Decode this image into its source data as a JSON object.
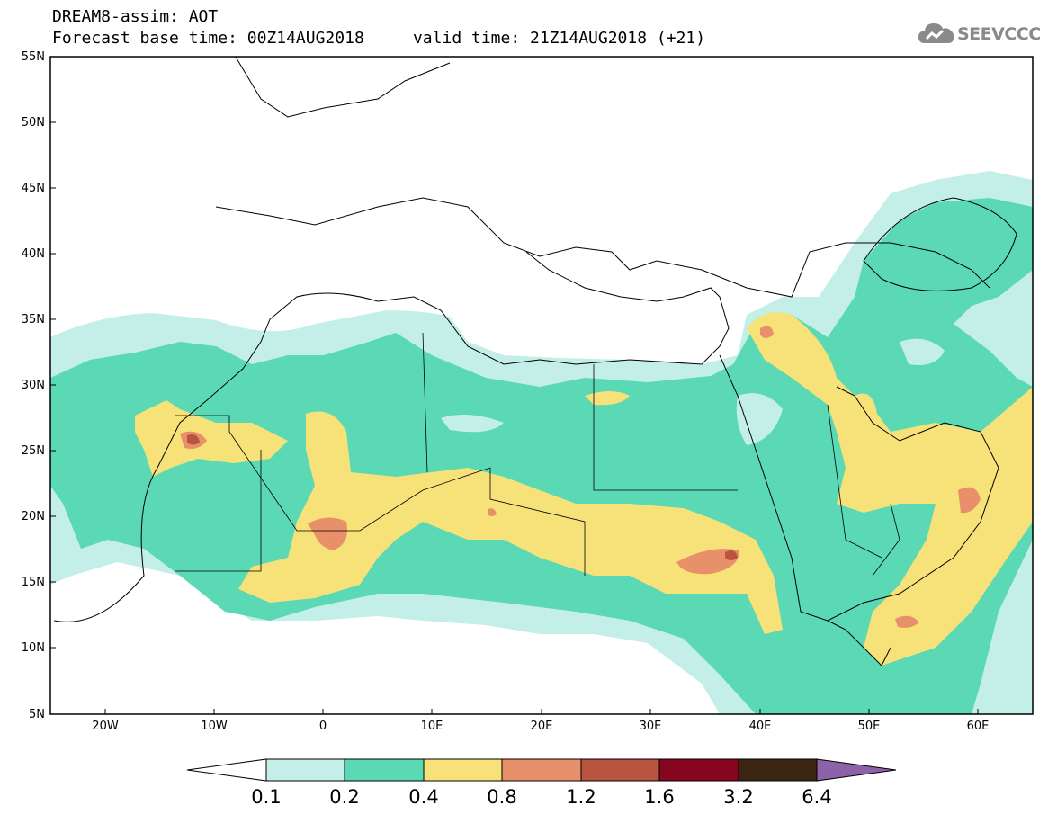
{
  "header": {
    "title_line1": "DREAM8-assim: AOT",
    "title_line2": "Forecast base time: 00Z14AUG2018     valid time: 21Z14AUG2018 (+21)"
  },
  "logo": {
    "text": "SEEVCCC"
  },
  "map": {
    "projection": "lat-lon",
    "lon_range": [
      -25,
      65
    ],
    "lat_range": [
      5,
      55
    ],
    "lat_ticks": [
      "5N",
      "10N",
      "15N",
      "20N",
      "25N",
      "30N",
      "35N",
      "40N",
      "45N",
      "50N",
      "55N"
    ],
    "lon_ticks": [
      "20W",
      "10W",
      "0",
      "10E",
      "20E",
      "30E",
      "40E",
      "50E",
      "60E"
    ]
  },
  "colorbar": {
    "labels": [
      "0.1",
      "0.2",
      "0.4",
      "0.8",
      "1.2",
      "1.6",
      "3.2",
      "6.4"
    ],
    "colors": [
      "#c4efe8",
      "#5ad9b4",
      "#f7e27a",
      "#e8906a",
      "#b9553f",
      "#85061e",
      "#3a2612",
      "#8e62a8"
    ]
  }
}
